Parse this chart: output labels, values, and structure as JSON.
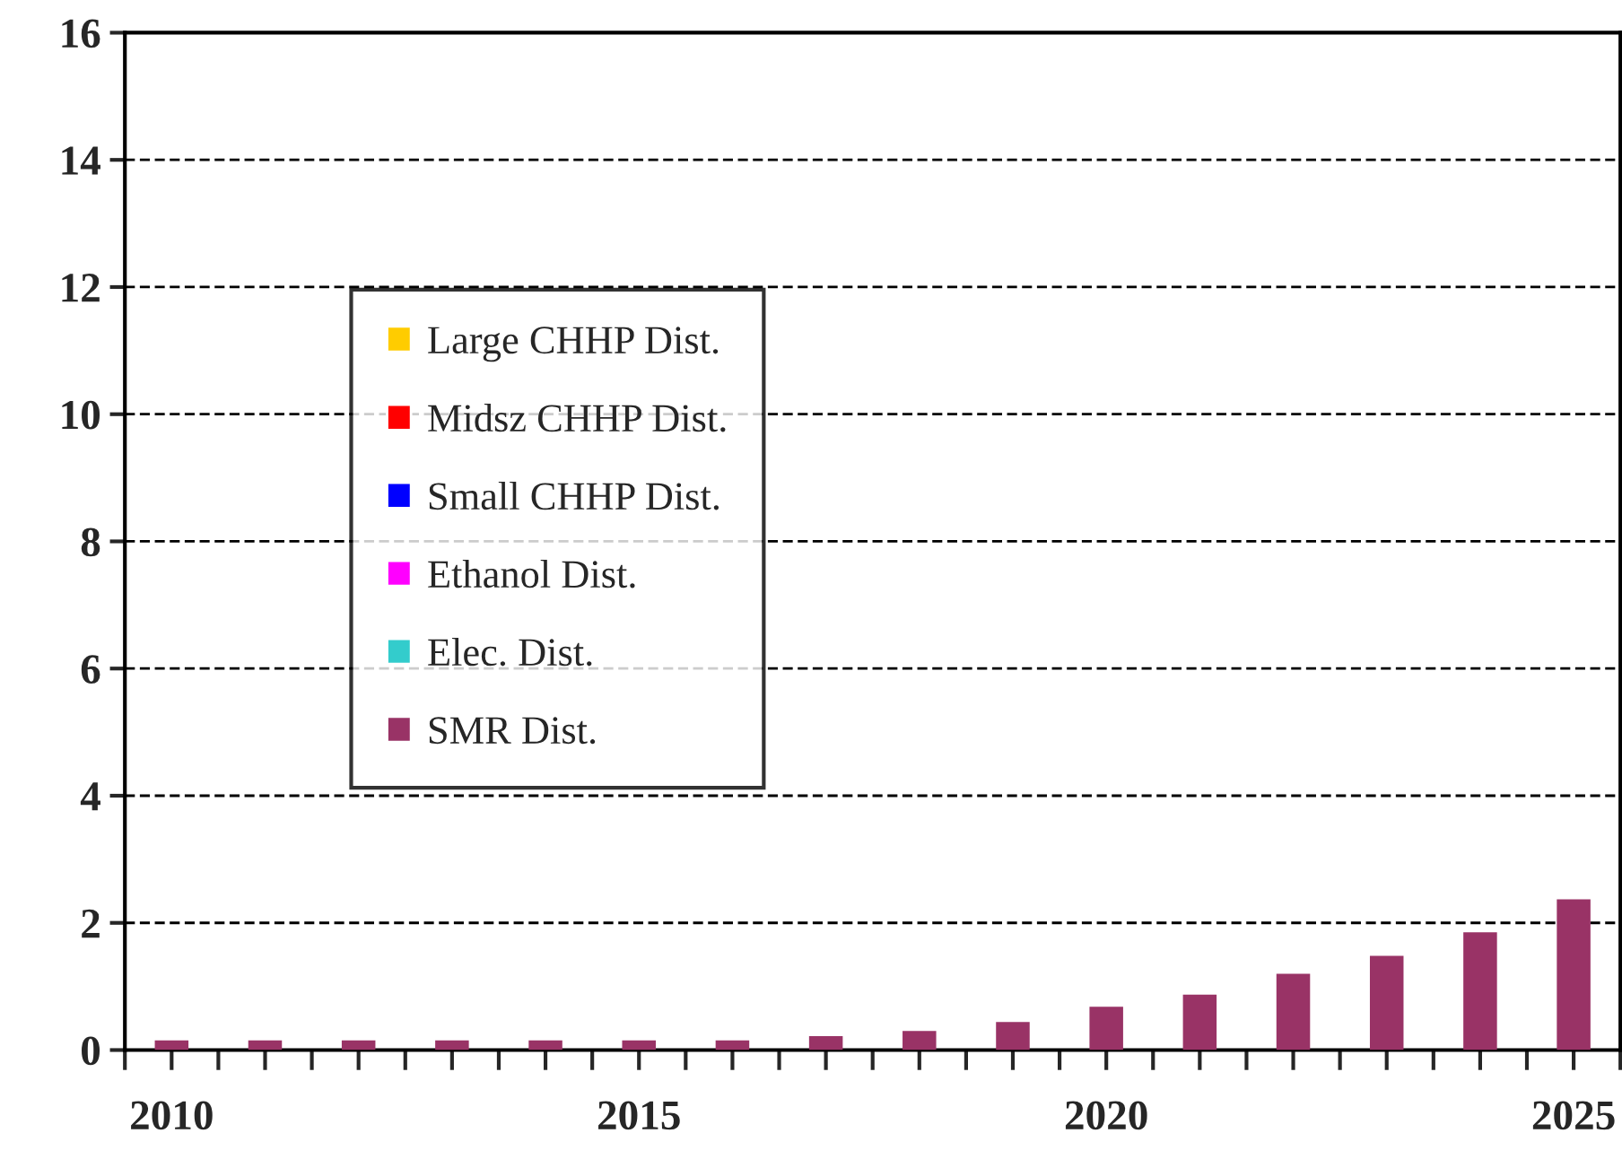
{
  "chart_data": {
    "type": "bar",
    "x": [
      2010,
      2011,
      2012,
      2013,
      2014,
      2015,
      2016,
      2017,
      2018,
      2019,
      2020,
      2021,
      2022,
      2023,
      2024,
      2025
    ],
    "series": [
      {
        "name": "SMR Dist.",
        "color": "#993366",
        "values": [
          0.15,
          0.15,
          0.15,
          0.15,
          0.15,
          0.15,
          0.15,
          0.22,
          0.3,
          0.44,
          0.68,
          0.87,
          1.2,
          1.48,
          1.85,
          2.37
        ]
      },
      {
        "name": "Elec. Dist.",
        "color": "#33cccc",
        "values": [
          0,
          0,
          0,
          0,
          0,
          0,
          0,
          0,
          0,
          0,
          0,
          0,
          0,
          0,
          0,
          0
        ]
      },
      {
        "name": "Ethanol Dist.",
        "color": "#ff00ff",
        "values": [
          0,
          0,
          0,
          0,
          0,
          0,
          0,
          0,
          0,
          0,
          0,
          0,
          0,
          0,
          0,
          0
        ]
      },
      {
        "name": "Small CHHP Dist.",
        "color": "#0000ff",
        "values": [
          0,
          0,
          0,
          0,
          0,
          0,
          0,
          0,
          0,
          0,
          0,
          0,
          0,
          0,
          0,
          0
        ]
      },
      {
        "name": "Midsz CHHP Dist.",
        "color": "#ff0000",
        "values": [
          0,
          0,
          0,
          0,
          0,
          0,
          0,
          0,
          0,
          0,
          0,
          0,
          0,
          0,
          0,
          0
        ]
      },
      {
        "name": "Large CHHP Dist.",
        "color": "#ffcc00",
        "values": [
          0,
          0,
          0,
          0,
          0,
          0,
          0,
          0,
          0,
          0,
          0,
          0,
          0,
          0,
          0,
          0
        ]
      }
    ],
    "xlim": [
      2009.5,
      2025.5
    ],
    "xticks": [
      {
        "value": 2009.5,
        "label": null
      },
      2010,
      {
        "value": 2010.5,
        "label": null
      },
      {
        "value": 2011,
        "label": null
      },
      {
        "value": 2011.5,
        "label": null
      },
      {
        "value": 2012,
        "label": null
      },
      {
        "value": 2012.5,
        "label": null
      },
      {
        "value": 2013,
        "label": null
      },
      {
        "value": 2013.5,
        "label": null
      },
      {
        "value": 2014,
        "label": null
      },
      {
        "value": 2014.5,
        "label": null
      },
      2015,
      {
        "value": 2015.5,
        "label": null
      },
      {
        "value": 2016,
        "label": null
      },
      {
        "value": 2016.5,
        "label": null
      },
      {
        "value": 2017,
        "label": null
      },
      {
        "value": 2017.5,
        "label": null
      },
      {
        "value": 2018,
        "label": null
      },
      {
        "value": 2018.5,
        "label": null
      },
      {
        "value": 2019,
        "label": null
      },
      {
        "value": 2019.5,
        "label": null
      },
      2020,
      {
        "value": 2020.5,
        "label": null
      },
      {
        "value": 2021,
        "label": null
      },
      {
        "value": 2021.5,
        "label": null
      },
      {
        "value": 2022,
        "label": null
      },
      {
        "value": 2022.5,
        "label": null
      },
      {
        "value": 2023,
        "label": null
      },
      {
        "value": 2023.5,
        "label": null
      },
      {
        "value": 2024,
        "label": null
      },
      {
        "value": 2024.5,
        "label": null
      },
      2025,
      {
        "value": 2025.5,
        "label": null
      }
    ],
    "ylim": [
      0,
      16
    ],
    "yticks": [
      0,
      2,
      4,
      6,
      8,
      10,
      12,
      14,
      16
    ],
    "grid": "y",
    "legend": "left"
  }
}
